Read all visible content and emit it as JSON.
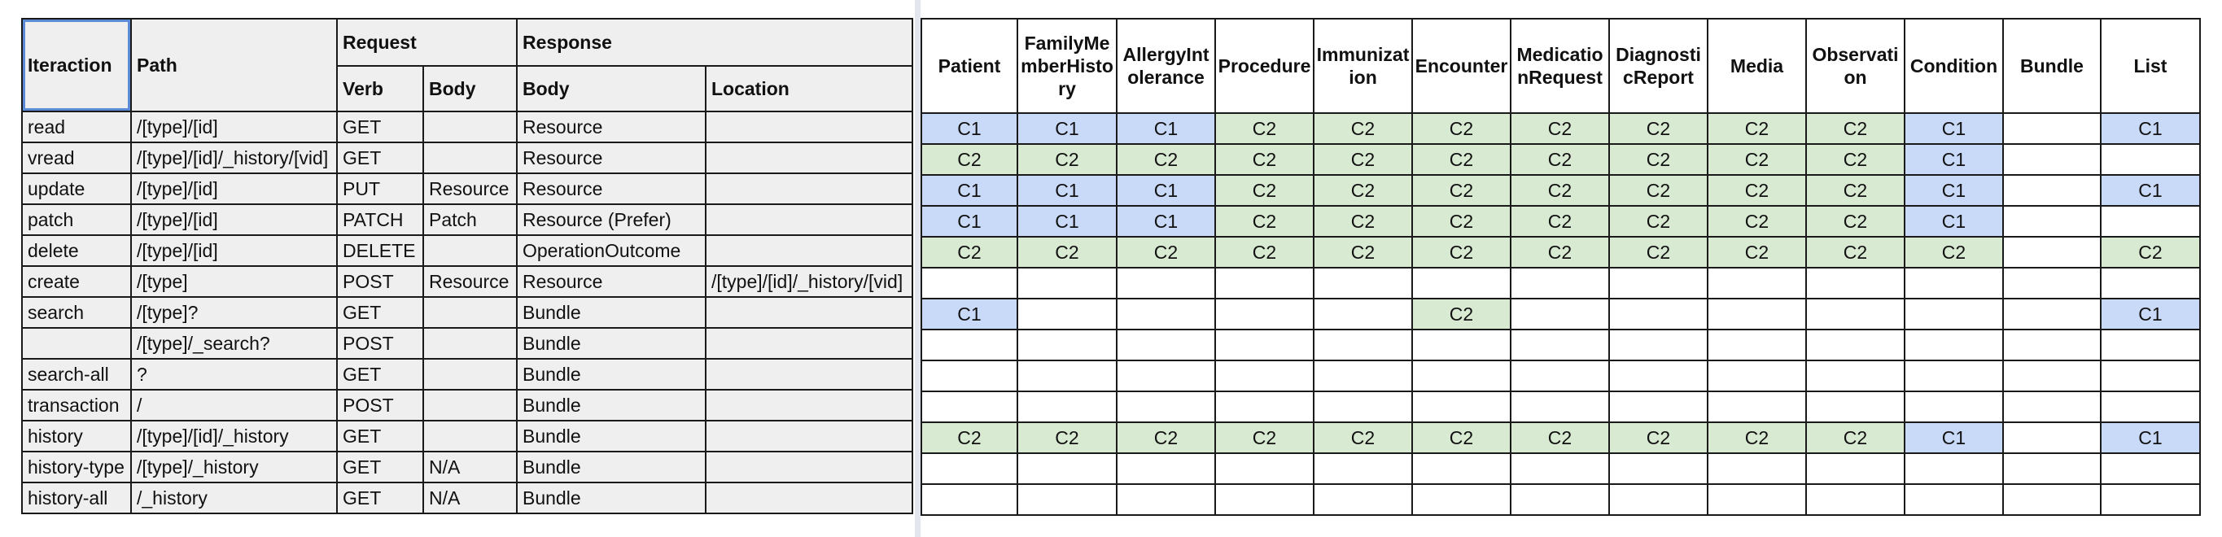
{
  "left_table": {
    "headers": {
      "interaction": "Iteraction",
      "path": "Path",
      "request": "Request",
      "response": "Response",
      "verb": "Verb",
      "req_body": "Body",
      "resp_body": "Body",
      "location": "Location"
    },
    "rows": [
      [
        "read",
        "/[type]/[id]",
        "GET",
        "",
        "Resource",
        ""
      ],
      [
        "vread",
        "/[type]/[id]/_history/[vid]",
        "GET",
        "",
        "Resource",
        ""
      ],
      [
        "update",
        "/[type]/[id]",
        "PUT",
        "Resource",
        "Resource",
        ""
      ],
      [
        "patch",
        "/[type]/[id]",
        "PATCH",
        "Patch",
        "Resource (Prefer)",
        ""
      ],
      [
        "delete",
        "/[type]/[id]",
        "DELETE",
        "",
        "OperationOutcome",
        ""
      ],
      [
        "create",
        "/[type]",
        "POST",
        "Resource",
        "Resource",
        "/[type]/[id]/_history/[vid]"
      ],
      [
        "search",
        "/[type]?",
        "GET",
        "",
        "Bundle",
        ""
      ],
      [
        "",
        "/[type]/_search?",
        "POST",
        "",
        "Bundle",
        ""
      ],
      [
        "search-all",
        "?",
        "GET",
        "",
        "Bundle",
        ""
      ],
      [
        "transaction",
        "/",
        "POST",
        "",
        "Bundle",
        ""
      ],
      [
        "history",
        "/[type]/[id]/_history",
        "GET",
        "",
        "Bundle",
        ""
      ],
      [
        "history-type",
        "/[type]/_history",
        "GET",
        "N/A",
        "Bundle",
        ""
      ],
      [
        "history-all",
        "/_history",
        "GET",
        "N/A",
        "Bundle",
        ""
      ]
    ]
  },
  "right_table": {
    "columns": [
      "Patient",
      "FamilyMemberHistory",
      "AllergyIntolerance",
      "Procedure",
      "Immunization",
      "Encounter",
      "MedicationRequest",
      "DiagnosticReport",
      "Media",
      "Observation",
      "Condition",
      "Bundle",
      "List"
    ],
    "rows": [
      [
        "C1",
        "C1",
        "C1",
        "C2",
        "C2",
        "C2",
        "C2",
        "C2",
        "C2",
        "C2",
        "C1",
        "",
        "C1"
      ],
      [
        "C2",
        "C2",
        "C2",
        "C2",
        "C2",
        "C2",
        "C2",
        "C2",
        "C2",
        "C2",
        "C1",
        "",
        ""
      ],
      [
        "C1",
        "C1",
        "C1",
        "C2",
        "C2",
        "C2",
        "C2",
        "C2",
        "C2",
        "C2",
        "C1",
        "",
        "C1"
      ],
      [
        "C1",
        "C1",
        "C1",
        "C2",
        "C2",
        "C2",
        "C2",
        "C2",
        "C2",
        "C2",
        "C1",
        "",
        ""
      ],
      [
        "C2",
        "C2",
        "C2",
        "C2",
        "C2",
        "C2",
        "C2",
        "C2",
        "C2",
        "C2",
        "C2",
        "",
        "C2"
      ],
      [
        "",
        "",
        "",
        "",
        "",
        "",
        "",
        "",
        "",
        "",
        "",
        "",
        ""
      ],
      [
        "C1",
        "",
        "",
        "",
        "",
        "C2",
        "",
        "",
        "",
        "",
        "",
        "",
        "C1"
      ],
      [
        "",
        "",
        "",
        "",
        "",
        "",
        "",
        "",
        "",
        "",
        "",
        "",
        ""
      ],
      [
        "",
        "",
        "",
        "",
        "",
        "",
        "",
        "",
        "",
        "",
        "",
        "",
        ""
      ],
      [
        "",
        "",
        "",
        "",
        "",
        "",
        "",
        "",
        "",
        "",
        "",
        "",
        ""
      ],
      [
        "C2",
        "C2",
        "C2",
        "C2",
        "C2",
        "C2",
        "C2",
        "C2",
        "C2",
        "C2",
        "C1",
        "",
        "C1"
      ],
      [
        "",
        "",
        "",
        "",
        "",
        "",
        "",
        "",
        "",
        "",
        "",
        "",
        ""
      ],
      [
        "",
        "",
        "",
        "",
        "",
        "",
        "",
        "",
        "",
        "",
        "",
        "",
        ""
      ]
    ],
    "colors": {
      "C1": "#c9daf8",
      "C2": "#d9ead3"
    }
  }
}
